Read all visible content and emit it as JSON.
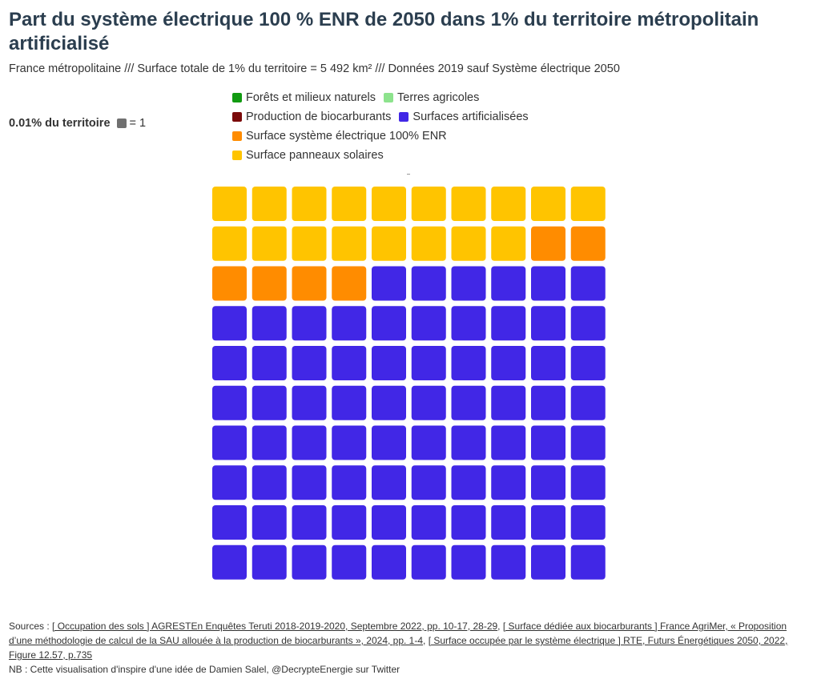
{
  "title": "Part du système électrique 100 % ENR de 2050 dans 1% du territoire métropolitain artificialisé",
  "subtitle": "France métropolitaine /// Surface totale de 1% du territoire = 5 492 km² /// Données 2019 sauf Système électrique 2050",
  "unit_legend": {
    "label": "0.01% du territoire",
    "value_text": "= 1",
    "color": "#707070"
  },
  "legend_items": [
    {
      "label": "Forêts et milieux naturels",
      "color": "#119a11"
    },
    {
      "label": "Terres agricoles",
      "color": "#8de38d"
    },
    {
      "label": "Production de biocarburants",
      "color": "#7a0a0a"
    },
    {
      "label": "Surfaces artificialisées",
      "color": "#4127e6"
    },
    {
      "label": "Surface système électrique 100% ENR",
      "color": "#ff8c00"
    },
    {
      "label": "Surface panneaux solaires",
      "color": "#ffc400"
    }
  ],
  "chart_data": {
    "type": "waffle",
    "rows": 10,
    "cols": 10,
    "unit": "0.01% du territoire",
    "fill_order": "bottom-up, right-to-left",
    "series": [
      {
        "name": "Surfaces artificialisées",
        "value": 76,
        "color": "#4127e6"
      },
      {
        "name": "Surface système électrique 100% ENR",
        "value": 6,
        "color": "#ff8c00"
      },
      {
        "name": "Surface panneaux solaires",
        "value": 18,
        "color": "#ffc400"
      }
    ]
  },
  "footer": {
    "sources_prefix": "Sources : ",
    "source1_link": "[ Occupation des sols ] AGRESTEn Enquêtes Teruti 2018-2019-2020, Septembre 2022, pp. 10-17, 28-29",
    "sep1": ", ",
    "source2_link": "[ Surface dédiée aux biocarburants ] France AgriMer, « Proposition d’une méthodologie de calcul de la SAU allouée à la production de biocarburants », 2024, pp. 1-4",
    "sep2": ", ",
    "source3_link": "[ Surface occupée par le système électrique ] RTE, Futurs Énergétiques 2050, 2022, Figure 12.57, p.735",
    "nb": "NB : Cette visualisation d'inspire d'une idée de Damien Salel, @DecrypteEnergie sur Twitter"
  }
}
